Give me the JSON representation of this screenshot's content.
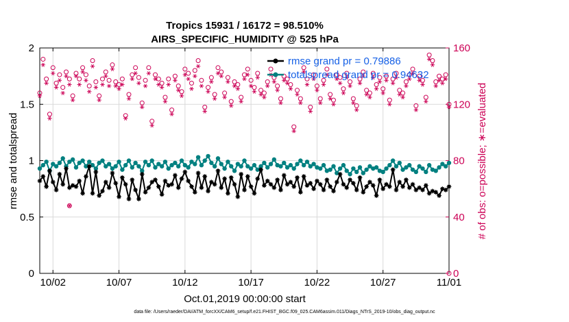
{
  "chart_data": {
    "type": "line",
    "title": "Tropics 15931 / 16172 = 98.510%",
    "subtitle": "AIRS_SPECIFIC_HUMIDITY @ 525 hPa",
    "xlabel": "Oct.01,2019 00:00:00 start",
    "ylabel": "rmse and totalspread",
    "ylabel_right": "# of obs: o=possible; ∗=evaluated",
    "footer": "data file: /Users/raeder/DAI/ATM_forcXX/CAM6_setup/f.e21.FHIST_BGC.f09_025.CAM6assim.011/Diags_NTrS_2019-10/obs_diag_output.nc",
    "x_ticks": [
      "10/02",
      "10/07",
      "10/12",
      "10/17",
      "10/22",
      "10/27",
      "11/01"
    ],
    "y_ticks": [
      "0",
      "0.5",
      "1",
      "1.5",
      "2"
    ],
    "y2_ticks": [
      "0",
      "40",
      "80",
      "120",
      "160"
    ],
    "xlim": [
      0,
      124
    ],
    "ylim": [
      0,
      2
    ],
    "y2lim": [
      0,
      160
    ],
    "grid": true,
    "legend_position": "top-right",
    "series": [
      {
        "name": "rmse grand pr = 0.79886",
        "color": "#000000",
        "marker": "star",
        "values": [
          0.82,
          0.86,
          0.77,
          0.91,
          0.81,
          0.74,
          0.88,
          0.79,
          0.93,
          0.76,
          0.78,
          0.77,
          0.82,
          0.71,
          0.86,
          0.95,
          0.71,
          0.9,
          0.69,
          0.73,
          0.81,
          0.76,
          0.89,
          0.8,
          0.68,
          0.85,
          0.79,
          0.66,
          0.83,
          0.74,
          0.66,
          0.88,
          0.72,
          0.76,
          0.81,
          0.83,
          0.77,
          0.7,
          0.82,
          0.78,
          0.79,
          0.87,
          0.76,
          0.84,
          0.9,
          0.82,
          0.77,
          0.72,
          0.89,
          0.76,
          0.86,
          0.73,
          0.81,
          0.79,
          0.91,
          0.76,
          0.84,
          0.71,
          0.85,
          0.79,
          0.68,
          0.88,
          0.74,
          0.86,
          0.77,
          0.71,
          0.84,
          0.92,
          0.78,
          0.82,
          0.79,
          0.76,
          0.83,
          0.74,
          0.87,
          0.79,
          0.81,
          0.77,
          0.85,
          0.72,
          0.86,
          0.78,
          0.8,
          0.75,
          0.82,
          0.79,
          0.74,
          0.83,
          0.77,
          0.73,
          0.81,
          0.88,
          0.79,
          0.76,
          0.83,
          0.8,
          0.74,
          0.85,
          0.72,
          0.77,
          0.81,
          0.78,
          0.69,
          0.83,
          0.75,
          0.79,
          0.77,
          0.92,
          0.74,
          0.81,
          0.77,
          0.83,
          0.76,
          0.79,
          0.74,
          0.76,
          0.74,
          0.78,
          0.71,
          0.73,
          0.72,
          0.69,
          0.75,
          0.74,
          0.77
        ]
      },
      {
        "name": "totalspread grand pr = 0.94632",
        "color": "#008080",
        "marker": "circle",
        "values": [
          0.93,
          0.96,
          0.99,
          0.91,
          0.97,
          0.95,
          0.98,
          1.02,
          0.95,
          0.99,
          1.01,
          0.94,
          0.98,
          1.0,
          0.95,
          0.99,
          0.96,
          0.93,
          0.98,
          1.0,
          0.95,
          0.97,
          0.93,
          0.95,
          0.99,
          0.92,
          0.96,
          1.0,
          0.94,
          0.98,
          0.95,
          0.91,
          0.99,
          0.96,
          1.0,
          0.94,
          0.97,
          0.95,
          0.99,
          0.93,
          0.96,
          0.98,
          0.95,
          1.0,
          0.96,
          0.94,
          0.99,
          0.97,
          1.03,
          0.96,
          1.0,
          1.04,
          0.98,
          0.95,
          1.02,
          0.97,
          0.93,
          0.99,
          0.95,
          0.91,
          0.97,
          0.95,
          1.0,
          0.95,
          0.93,
          0.96,
          0.92,
          0.95,
          0.98,
          0.94,
          0.97,
          1.01,
          0.96,
          0.95,
          0.98,
          0.94,
          0.96,
          0.93,
          0.97,
          1.0,
          0.96,
          0.99,
          0.95,
          0.97,
          0.94,
          0.93,
          0.96,
          0.91,
          0.92,
          0.95,
          0.89,
          0.93,
          0.96,
          0.91,
          0.88,
          0.93,
          0.9,
          0.94,
          0.89,
          0.92,
          0.95,
          0.93,
          0.94,
          0.91,
          0.9,
          0.93,
          0.96,
          1.0,
          0.95,
          0.98,
          0.92,
          0.94,
          0.96,
          0.92,
          0.9,
          0.95,
          0.93,
          0.9,
          0.96,
          0.92,
          0.91,
          0.94,
          0.97,
          0.95,
          0.98
        ]
      },
      {
        "name": "# of obs possible",
        "color": "#cc0055",
        "marker": "open-circle",
        "axis": "right",
        "values": [
          128,
          152,
          138,
          113,
          146,
          135,
          141,
          132,
          143,
          138,
          126,
          142,
          138,
          146,
          141,
          133,
          151,
          136,
          126,
          138,
          143,
          137,
          148,
          136,
          134,
          138,
          112,
          127,
          141,
          146,
          139,
          121,
          137,
          146,
          108,
          141,
          138,
          135,
          125,
          138,
          116,
          140,
          133,
          129,
          145,
          142,
          135,
          144,
          151,
          137,
          118,
          132,
          139,
          127,
          146,
          143,
          128,
          139,
          122,
          136,
          134,
          125,
          141,
          145,
          137,
          132,
          142,
          130,
          128,
          136,
          145,
          139,
          133,
          124,
          140,
          138,
          134,
          104,
          130,
          124,
          146,
          138,
          118,
          141,
          133,
          124,
          137,
          145,
          127,
          123,
          141,
          139,
          131,
          142,
          136,
          124,
          119,
          138,
          143,
          130,
          128,
          142,
          134,
          139,
          131,
          140,
          123,
          138,
          142,
          130,
          128,
          136,
          141,
          145,
          119,
          140,
          137,
          125,
          155,
          151,
          136,
          140,
          138,
          141,
          120
        ]
      },
      {
        "name": "# of obs evaluated",
        "color": "#cc0055",
        "marker": "asterisk",
        "axis": "right",
        "values": [
          126,
          148,
          135,
          110,
          142,
          132,
          137,
          128,
          140,
          134,
          123,
          140,
          134,
          143,
          137,
          129,
          147,
          132,
          123,
          134,
          140,
          133,
          145,
          133,
          131,
          134,
          110,
          124,
          138,
          142,
          135,
          118,
          133,
          142,
          105,
          138,
          134,
          132,
          122,
          134,
          113,
          137,
          130,
          126,
          141,
          138,
          131,
          140,
          147,
          133,
          115,
          129,
          136,
          124,
          142,
          140,
          125,
          136,
          119,
          133,
          131,
          122,
          138,
          141,
          133,
          129,
          139,
          127,
          125,
          133,
          141,
          136,
          130,
          121,
          137,
          135,
          131,
          101,
          127,
          121,
          143,
          134,
          115,
          138,
          130,
          121,
          134,
          141,
          124,
          120,
          138,
          135,
          128,
          139,
          133,
          121,
          116,
          135,
          140,
          127,
          125,
          139,
          131,
          136,
          128,
          137,
          120,
          135,
          139,
          127,
          125,
          133,
          138,
          142,
          116,
          137,
          134,
          122,
          152,
          148,
          133,
          137,
          135,
          138,
          118
        ]
      }
    ],
    "extra_points": [
      {
        "x": 9,
        "y2": 48,
        "marker": "open-circle"
      },
      {
        "x": 9,
        "y2": 48,
        "marker": "asterisk"
      },
      {
        "x": 124,
        "y2": 0,
        "marker": "open-circle"
      }
    ]
  }
}
